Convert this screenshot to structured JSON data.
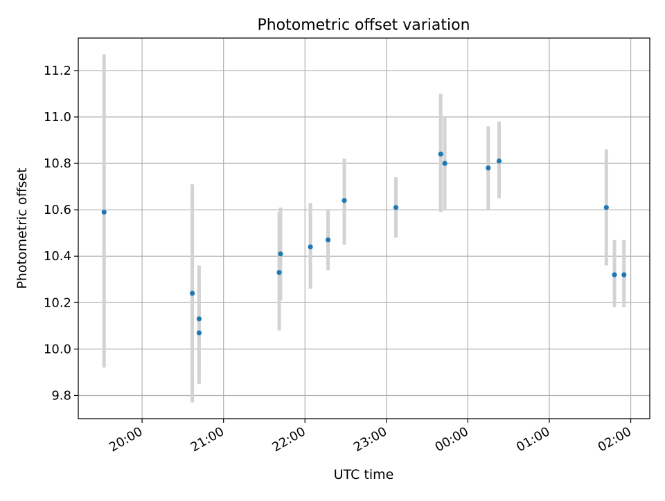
{
  "chart_data": {
    "type": "scatter",
    "title": "Photometric offset variation",
    "xlabel": "UTC time",
    "ylabel": "Photometric offset",
    "x_ticks": [
      "20:00",
      "21:00",
      "22:00",
      "23:00",
      "00:00",
      "01:00",
      "02:00"
    ],
    "y_ticks": [
      "9.8",
      "10.0",
      "10.2",
      "10.4",
      "10.6",
      "10.8",
      "11.0",
      "11.2"
    ],
    "xlim": [
      "19:13",
      "02:14"
    ],
    "ylim": [
      9.7,
      11.34
    ],
    "grid": true,
    "colors": {
      "point": "#1f77b4",
      "errorbar": "#d3d3d3",
      "grid": "#b0b0b0"
    },
    "series": [
      {
        "points": [
          {
            "x": "19:32",
            "y": 10.59,
            "lo": 9.92,
            "hi": 11.27
          },
          {
            "x": "20:37",
            "y": 10.24,
            "lo": 9.77,
            "hi": 10.71
          },
          {
            "x": "20:42",
            "y": 10.13,
            "lo": 9.9,
            "hi": 10.36
          },
          {
            "x": "20:42",
            "y": 10.07,
            "lo": 9.85,
            "hi": 10.29
          },
          {
            "x": "21:41",
            "y": 10.33,
            "lo": 10.08,
            "hi": 10.59
          },
          {
            "x": "21:42",
            "y": 10.41,
            "lo": 10.21,
            "hi": 10.61
          },
          {
            "x": "22:04",
            "y": 10.44,
            "lo": 10.26,
            "hi": 10.63
          },
          {
            "x": "22:17",
            "y": 10.47,
            "lo": 10.34,
            "hi": 10.6
          },
          {
            "x": "22:29",
            "y": 10.64,
            "lo": 10.45,
            "hi": 10.82
          },
          {
            "x": "23:07",
            "y": 10.61,
            "lo": 10.48,
            "hi": 10.74
          },
          {
            "x": "23:40",
            "y": 10.84,
            "lo": 10.59,
            "hi": 11.1
          },
          {
            "x": "23:43",
            "y": 10.8,
            "lo": 10.6,
            "hi": 11.0
          },
          {
            "x": "00:15",
            "y": 10.78,
            "lo": 10.6,
            "hi": 10.96
          },
          {
            "x": "00:23",
            "y": 10.81,
            "lo": 10.65,
            "hi": 10.98
          },
          {
            "x": "01:42",
            "y": 10.61,
            "lo": 10.36,
            "hi": 10.86
          },
          {
            "x": "01:48",
            "y": 10.32,
            "lo": 10.18,
            "hi": 10.47
          },
          {
            "x": "01:55",
            "y": 10.32,
            "lo": 10.18,
            "hi": 10.47
          }
        ]
      }
    ]
  }
}
